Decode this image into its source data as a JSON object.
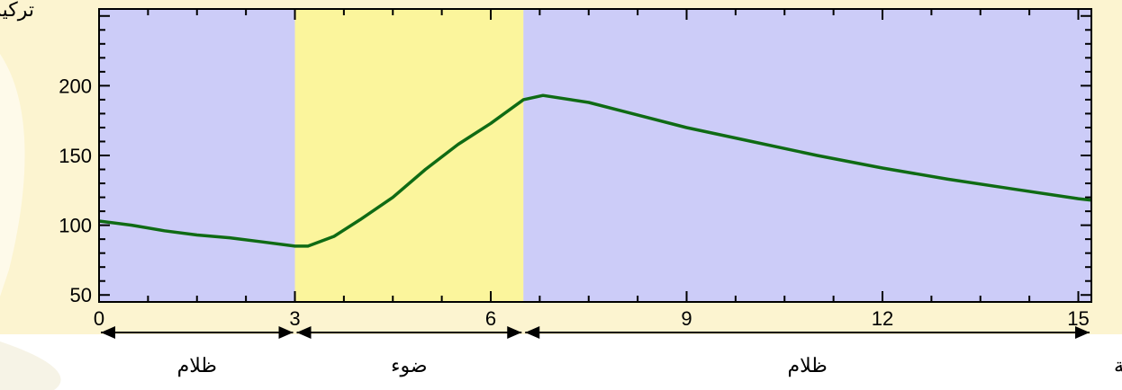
{
  "chart_data": {
    "type": "line",
    "ylabel": "تركيز",
    "xlabel": "لزمن بالدقيقة",
    "x_ticks": [
      "0",
      "3",
      "6",
      "9",
      "12",
      "15"
    ],
    "y_ticks": [
      "50",
      "100",
      "150",
      "200"
    ],
    "xlim": [
      0,
      15.2
    ],
    "ylim": [
      45,
      255
    ],
    "grid": false,
    "phases": [
      {
        "label": "ظلام",
        "start": 0,
        "end": 3,
        "color": "#ccccf8"
      },
      {
        "label": "ضوء",
        "start": 3,
        "end": 6.5,
        "color": "#fbf59c"
      },
      {
        "label": "ظلام",
        "start": 6.5,
        "end": 15.2,
        "color": "#ccccf8"
      }
    ],
    "series": [
      {
        "color": "#0f6b14",
        "x": [
          0,
          0.5,
          1,
          1.5,
          2,
          2.5,
          3,
          3.2,
          3.6,
          4,
          4.5,
          5,
          5.5,
          6,
          6.5,
          6.8,
          7.5,
          8,
          9,
          10,
          11,
          12,
          13,
          14,
          15,
          15.2
        ],
        "y": [
          103,
          100,
          96,
          93,
          91,
          88,
          85,
          85,
          92,
          104,
          120,
          140,
          158,
          173,
          190,
          193,
          188,
          182,
          170,
          160,
          150,
          141,
          133,
          126,
          119,
          118
        ]
      }
    ]
  },
  "colors": {
    "frame": "#fcf4d0",
    "axis": "#000000",
    "line": "#0f6b14"
  }
}
